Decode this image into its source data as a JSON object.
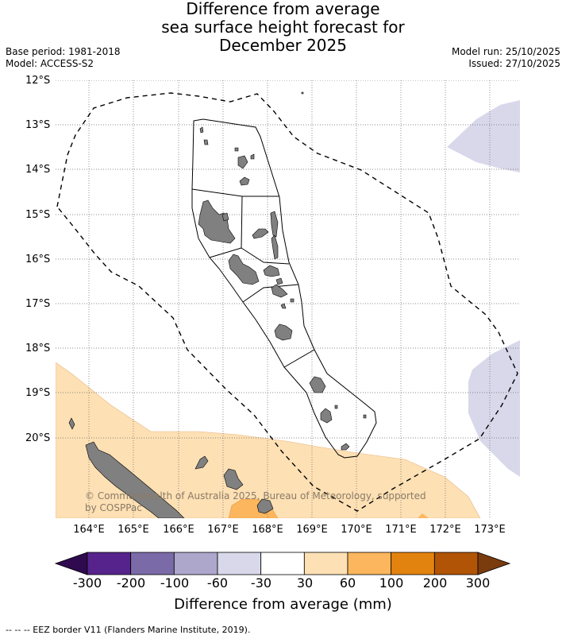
{
  "title_lines": [
    "Difference from average",
    "sea surface height forecast for",
    "December 2025"
  ],
  "meta_left": [
    "Base period: 1981-2018",
    "Model: ACCESS-S2"
  ],
  "meta_right": [
    "Model run: 25/10/2025",
    "Issued: 27/10/2025"
  ],
  "copyright_lines": [
    "© Commonwealth of Australia 2025, Bureau of Meteorology, supported",
    "by COSPPac"
  ],
  "footnote": "--  --  -- EEZ border V11 (Flanders Marine Institute, 2019).",
  "colorbar": {
    "label": "Difference from average (mm)",
    "ticks": [
      "-300",
      "-200",
      "-100",
      "-60",
      "-30",
      "30",
      "60",
      "100",
      "200",
      "300"
    ],
    "under_color": "#2f0a4e",
    "over_color": "#7a3b0d",
    "colors": [
      "#56238c",
      "#7b6aa8",
      "#aea7cc",
      "#d8d8ea",
      "#ffffff",
      "#fde0b4",
      "#fbb65e",
      "#e3830f",
      "#b15405"
    ]
  },
  "chart_data": {
    "type": "map",
    "title": "Difference from average sea surface height forecast for December 2025",
    "lon_ticks": [
      "164°E",
      "165°E",
      "166°E",
      "167°E",
      "168°E",
      "169°E",
      "170°E",
      "171°E",
      "172°E",
      "173°E"
    ],
    "lat_ticks": [
      "12°S",
      "13°S",
      "14°S",
      "15°S",
      "16°S",
      "17°S",
      "18°S",
      "19°S",
      "20°S"
    ],
    "lon_range": [
      163.3,
      173.7
    ],
    "lat_range": [
      -21.8,
      -12.0
    ],
    "grid": true,
    "colors": {
      "land": "#808080",
      "anomaly_30_60": "#fde0b4",
      "anomaly_60_100": "#fbb65e",
      "anomaly_minus60_minus30": "#d8d8ea"
    }
  }
}
